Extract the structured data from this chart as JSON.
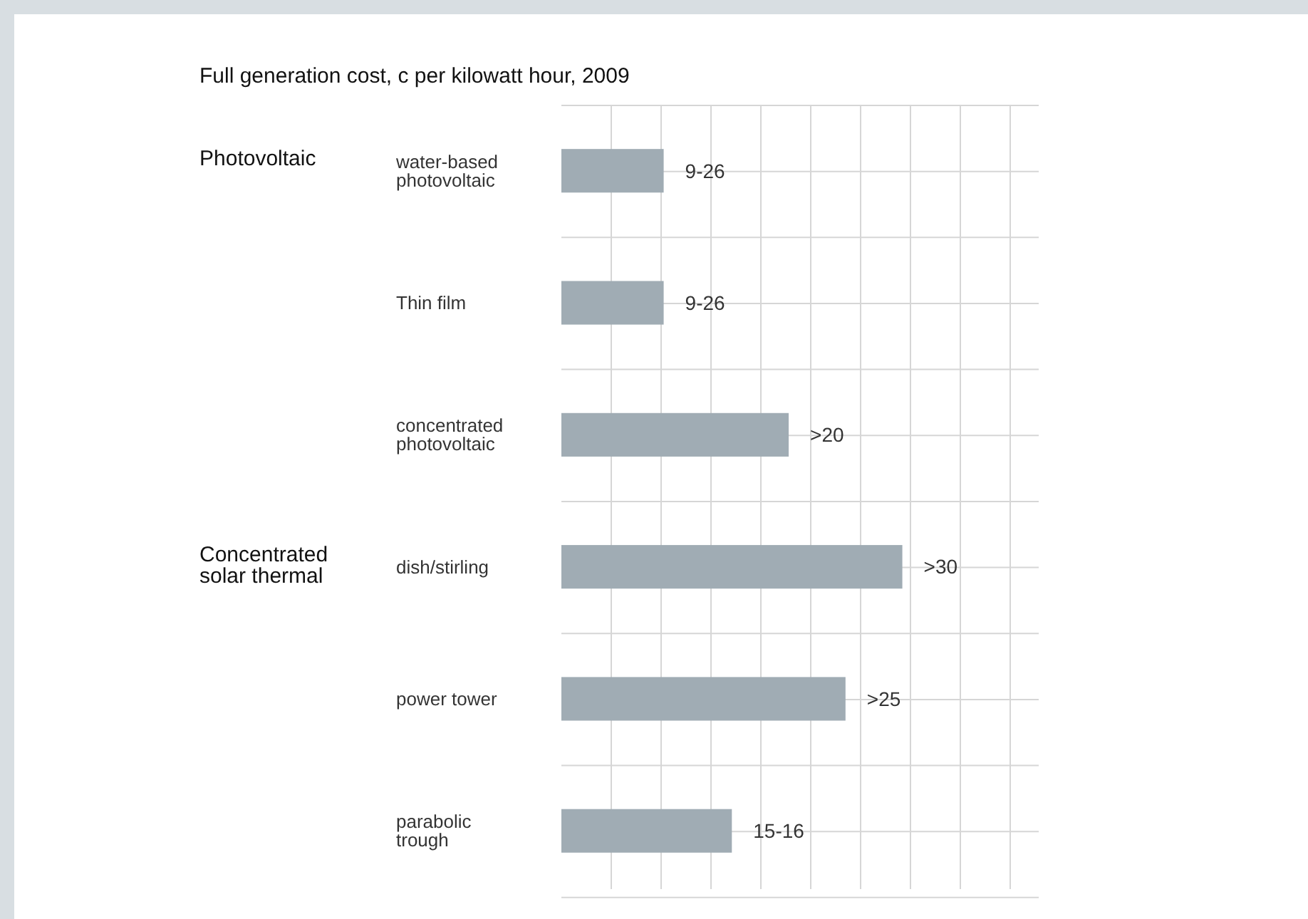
{
  "chart_data": {
    "type": "bar",
    "orientation": "horizontal",
    "xlim": [
      0,
      42
    ],
    "grid": true,
    "title": "Full generation cost, c per kilowatt hour, 2009",
    "categories": [
      "water-based photovoltaic",
      "Thin film",
      "concentrated photovoltaic",
      "dish/stirling",
      "power tower",
      "parabolic trough"
    ],
    "values": [
      9,
      9,
      20,
      30,
      25,
      15
    ],
    "value_labels": [
      "9-26",
      "9-26",
      ">20",
      ">30",
      ">25",
      "15-16"
    ],
    "color": "#a0acb4",
    "annotations": [
      "Photovoltaic",
      "Concentrated solar thermal"
    ]
  }
}
